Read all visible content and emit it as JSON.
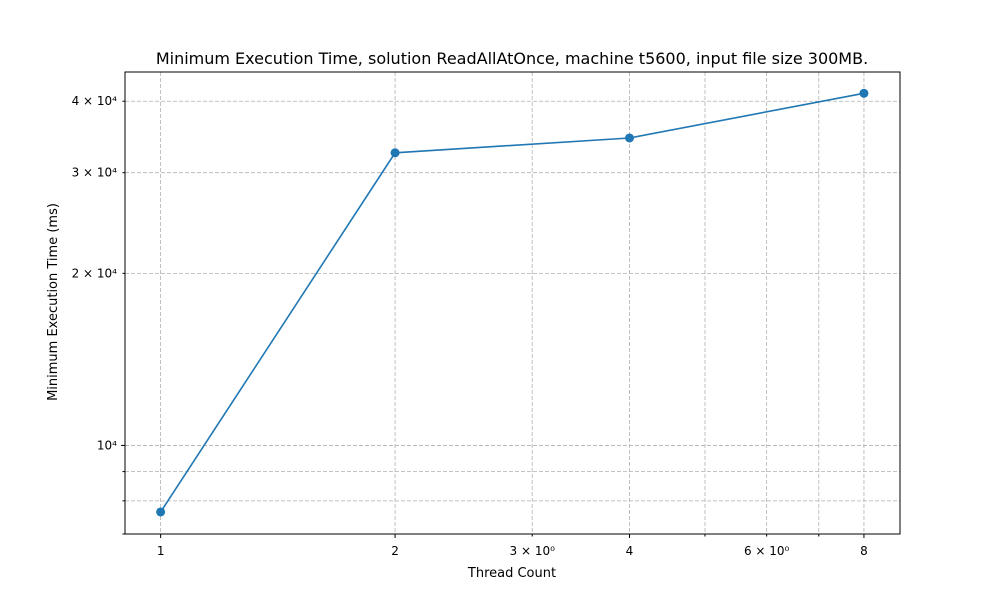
{
  "chart_data": {
    "type": "line",
    "title": "Minimum Execution Time, solution ReadAllAtOnce, machine t5600, input file size 300MB.",
    "xlabel": "Thread Count",
    "ylabel": "Minimum Execution Time (ms)",
    "x_scale": "log",
    "y_scale": "log",
    "xlim": [
      0.9,
      8.9
    ],
    "ylim": [
      7000,
      45000
    ],
    "grid": true,
    "series": [
      {
        "color": "#1f77b4",
        "marker": "circle",
        "x": [
          1,
          2,
          4,
          8
        ],
        "y": [
          7650,
          32500,
          34500,
          41300
        ]
      }
    ],
    "x_ticks": [
      {
        "value": 1,
        "label": "1",
        "major": true
      },
      {
        "value": 2,
        "label": "2",
        "major": true
      },
      {
        "value": 3,
        "label": "3 × 10⁰",
        "major": false
      },
      {
        "value": 4,
        "label": "4",
        "major": true
      },
      {
        "value": 5,
        "label": "",
        "major": false
      },
      {
        "value": 6,
        "label": "6 × 10⁰",
        "major": false
      },
      {
        "value": 7,
        "label": "",
        "major": false
      },
      {
        "value": 8,
        "label": "8",
        "major": true
      }
    ],
    "y_ticks": [
      {
        "value": 7000,
        "label": "",
        "major": false
      },
      {
        "value": 8000,
        "label": "",
        "major": false
      },
      {
        "value": 9000,
        "label": "",
        "major": false
      },
      {
        "value": 10000,
        "label": "10⁴",
        "major": true
      },
      {
        "value": 20000,
        "label": "2 × 10⁴",
        "major": false
      },
      {
        "value": 30000,
        "label": "3 × 10⁴",
        "major": false
      },
      {
        "value": 40000,
        "label": "4 × 10⁴",
        "major": false
      }
    ]
  }
}
